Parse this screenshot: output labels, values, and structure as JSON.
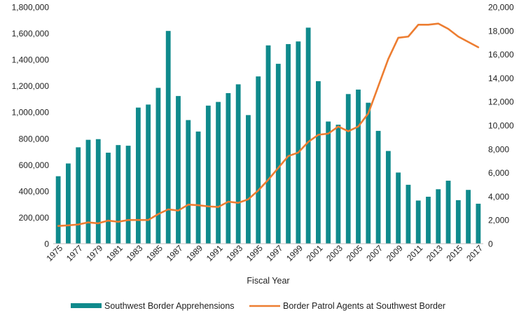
{
  "chart_data": {
    "type": "bar+line",
    "title": "",
    "xlabel": "Fiscal Year",
    "ylabel_left": "",
    "ylabel_right": "",
    "ylim_left": [
      0,
      1800000
    ],
    "ylim_right": [
      0,
      20000
    ],
    "yticks_left": [
      "0",
      "200,000",
      "400,000",
      "600,000",
      "800,000",
      "1,000,000",
      "1,200,000",
      "1,400,000",
      "1,600,000",
      "1,800,000"
    ],
    "yticks_right": [
      "0",
      "2,000",
      "4,000",
      "6,000",
      "8,000",
      "10,000",
      "12,000",
      "14,000",
      "16,000",
      "18,000",
      "20,000"
    ],
    "years": [
      1975,
      1976,
      1977,
      1978,
      1979,
      1980,
      1981,
      1982,
      1983,
      1984,
      1985,
      1986,
      1987,
      1988,
      1989,
      1990,
      1991,
      1992,
      1993,
      1994,
      1995,
      1996,
      1997,
      1998,
      1999,
      2000,
      2001,
      2002,
      2003,
      2004,
      2005,
      2006,
      2007,
      2008,
      2009,
      2010,
      2011,
      2012,
      2013,
      2014,
      2015,
      2016,
      2017
    ],
    "xtick_labels": [
      "1975",
      "1977",
      "1979",
      "1981",
      "1983",
      "1985",
      "1987",
      "1989",
      "1991",
      "1993",
      "1995",
      "1997",
      "1999",
      "2001",
      "2003",
      "2005",
      "2007",
      "2009",
      "2011",
      "2013",
      "2015",
      "2017"
    ],
    "series": [
      {
        "name": "Southwest Border Apprehensions",
        "kind": "bar",
        "axis": "left",
        "color": "#0f8a8c",
        "values": [
          513000,
          610000,
          733000,
          790000,
          795000,
          692000,
          750000,
          745000,
          1035000,
          1058000,
          1185000,
          1618000,
          1123000,
          940000,
          853000,
          1050000,
          1078000,
          1145000,
          1212000,
          978000,
          1272000,
          1508000,
          1368000,
          1518000,
          1538000,
          1643000,
          1236000,
          929000,
          905000,
          1138000,
          1172000,
          1072000,
          858000,
          705000,
          541000,
          448000,
          328000,
          357000,
          414000,
          479000,
          331000,
          409000,
          304000
        ]
      },
      {
        "name": "Border Patrol Agents at Southwest Border",
        "kind": "line",
        "axis": "right",
        "color": "#ed7d31",
        "values": [
          1500,
          1550,
          1620,
          1800,
          1720,
          1950,
          1850,
          2000,
          2000,
          2000,
          2500,
          2900,
          2800,
          3300,
          3250,
          3150,
          3100,
          3550,
          3450,
          3750,
          4500,
          5400,
          6400,
          7400,
          7700,
          8600,
          9200,
          9300,
          9900,
          9500,
          9900,
          11000,
          13300,
          15600,
          17400,
          17500,
          18500,
          18500,
          18600,
          18150,
          17500,
          17050,
          16600
        ]
      }
    ],
    "legend": {
      "position": "bottom",
      "items": [
        "Southwest Border Apprehensions",
        "Border Patrol Agents at Southwest Border"
      ]
    }
  }
}
